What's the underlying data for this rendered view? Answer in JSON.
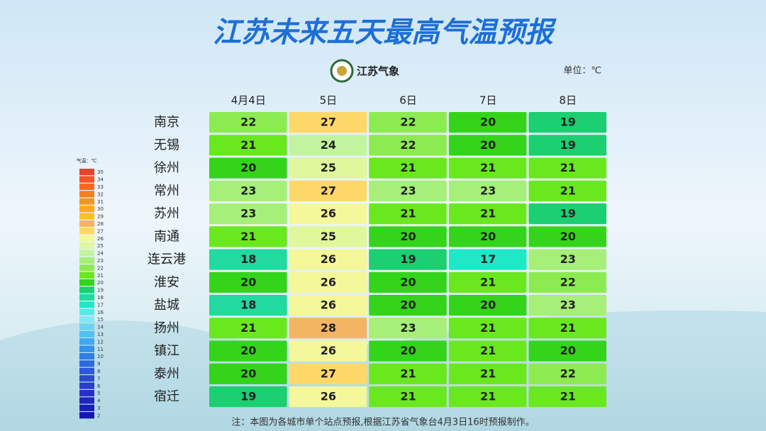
{
  "chart_data": {
    "type": "heatmap",
    "title": "江苏未来五天最高气温预报",
    "logo": "江苏气象",
    "unit": "单位：℃",
    "x": [
      "4月4日",
      "5日",
      "6日",
      "7日",
      "8日"
    ],
    "y": [
      "南京",
      "无锡",
      "徐州",
      "常州",
      "苏州",
      "南通",
      "连云港",
      "淮安",
      "盐城",
      "扬州",
      "镇江",
      "泰州",
      "宿迁"
    ],
    "values": [
      [
        22,
        27,
        22,
        20,
        19
      ],
      [
        21,
        24,
        22,
        20,
        19
      ],
      [
        20,
        25,
        21,
        21,
        21
      ],
      [
        23,
        27,
        23,
        23,
        21
      ],
      [
        23,
        26,
        21,
        21,
        19
      ],
      [
        21,
        25,
        20,
        20,
        20
      ],
      [
        18,
        26,
        19,
        17,
        23
      ],
      [
        20,
        26,
        20,
        21,
        22
      ],
      [
        18,
        26,
        20,
        20,
        23
      ],
      [
        21,
        28,
        23,
        21,
        21
      ],
      [
        20,
        26,
        20,
        21,
        20
      ],
      [
        20,
        27,
        21,
        21,
        22
      ],
      [
        19,
        26,
        21,
        21,
        21
      ]
    ],
    "legend_title": "气温：℃",
    "legend_ticks": [
      35,
      34,
      33,
      32,
      31,
      30,
      29,
      28,
      27,
      26,
      25,
      24,
      23,
      22,
      21,
      20,
      19,
      18,
      17,
      16,
      15,
      14,
      13,
      12,
      11,
      10,
      9,
      8,
      7,
      6,
      5,
      4,
      3,
      2
    ],
    "colorscale": [
      "#e8432a",
      "#ee5527",
      "#f36a24",
      "#f77f20",
      "#f9951e",
      "#fbab1c",
      "#fcc02c",
      "#f2b562",
      "#fdd868",
      "#f4f79a",
      "#e0f79c",
      "#c2f4a0",
      "#a6ef78",
      "#8ceb50",
      "#6ae81e",
      "#34d41a",
      "#1ccf70",
      "#22d9a0",
      "#1ee8c8",
      "#58e9e2",
      "#86e6f2",
      "#6cd4f0",
      "#52c0f0",
      "#3caaf0",
      "#3292ec",
      "#2c7ee6",
      "#2a6ae0",
      "#2a5ad8",
      "#2a4ad0",
      "#2a3cca",
      "#2830c4",
      "#2026bc",
      "#1a1eb4",
      "#1616ac"
    ],
    "note": "注：本图为各城市单个站点预报,根据江苏省气象台4月3日16时预报制作。"
  }
}
